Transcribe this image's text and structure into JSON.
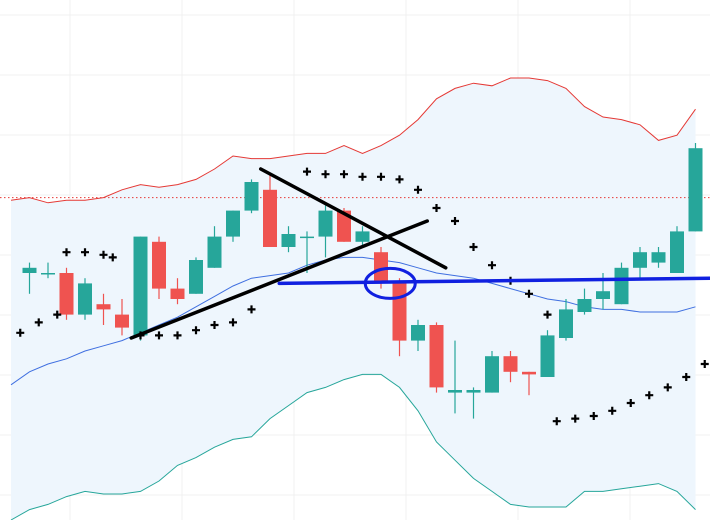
{
  "chart_data": {
    "type": "candlestick",
    "title": "",
    "xlabel": "",
    "ylabel": "",
    "ylim": [
      0,
      100
    ],
    "grid": true,
    "legend": "none",
    "colors": {
      "up": "#26a69a",
      "down": "#ef5350",
      "band_upper": "#e53935",
      "band_lower": "#26a69a",
      "band_fill": "#eef6fd",
      "middle_line": "#3f6fe0",
      "sar": "#000000",
      "trendline": "#000000",
      "support_line": "#1020e0",
      "reference_line": "#e53935",
      "grid": "#f0f0f0"
    },
    "reference_level": 62,
    "candles": [
      {
        "x": 1,
        "o": 47.5,
        "h": 49.5,
        "l": 43.5,
        "c": 48.5
      },
      {
        "x": 2,
        "o": 47.5,
        "h": 49.5,
        "l": 46.5,
        "c": 47.5
      },
      {
        "x": 3,
        "o": 47.5,
        "h": 48.5,
        "l": 38.5,
        "c": 39.5
      },
      {
        "x": 4,
        "o": 39.5,
        "h": 46.5,
        "l": 38.5,
        "c": 45.5
      },
      {
        "x": 5,
        "o": 41.5,
        "h": 43.5,
        "l": 37.5,
        "c": 40.5
      },
      {
        "x": 6,
        "o": 39.5,
        "h": 42.5,
        "l": 35.5,
        "c": 37.0
      },
      {
        "x": 7,
        "o": 35.5,
        "h": 54.5,
        "l": 34.5,
        "c": 54.5
      },
      {
        "x": 8,
        "o": 53.5,
        "h": 54.5,
        "l": 42.5,
        "c": 44.5
      },
      {
        "x": 9,
        "o": 44.5,
        "h": 46.5,
        "l": 41.5,
        "c": 42.5
      },
      {
        "x": 10,
        "o": 43.5,
        "h": 50.5,
        "l": 43.5,
        "c": 50.0
      },
      {
        "x": 11,
        "o": 48.5,
        "h": 56.5,
        "l": 48.5,
        "c": 54.5
      },
      {
        "x": 12,
        "o": 54.5,
        "h": 59.5,
        "l": 53.5,
        "c": 59.5
      },
      {
        "x": 13,
        "o": 59.5,
        "h": 65.5,
        "l": 59.0,
        "c": 65.0
      },
      {
        "x": 14,
        "o": 63.5,
        "h": 66.5,
        "l": 52.5,
        "c": 52.5
      },
      {
        "x": 15,
        "o": 52.5,
        "h": 56.5,
        "l": 51.5,
        "c": 55.0
      },
      {
        "x": 16,
        "o": 54.5,
        "h": 55.5,
        "l": 47.5,
        "c": 54.5
      },
      {
        "x": 17,
        "o": 54.5,
        "h": 60.5,
        "l": 50.5,
        "c": 59.5
      },
      {
        "x": 18,
        "o": 59.5,
        "h": 60.0,
        "l": 53.5,
        "c": 53.5
      },
      {
        "x": 19,
        "o": 53.5,
        "h": 56.5,
        "l": 52.5,
        "c": 55.5
      },
      {
        "x": 20,
        "o": 51.5,
        "h": 52.5,
        "l": 44.5,
        "c": 45.5
      },
      {
        "x": 21,
        "o": 45.5,
        "h": 46.5,
        "l": 31.5,
        "c": 34.5
      },
      {
        "x": 22,
        "o": 34.5,
        "h": 38.5,
        "l": 32.5,
        "c": 37.5
      },
      {
        "x": 23,
        "o": 37.5,
        "h": 38.0,
        "l": 24.5,
        "c": 25.5
      },
      {
        "x": 24,
        "o": 24.5,
        "h": 34.5,
        "l": 20.5,
        "c": 25.0
      },
      {
        "x": 25,
        "o": 24.5,
        "h": 25.5,
        "l": 19.5,
        "c": 25.0
      },
      {
        "x": 26,
        "o": 24.5,
        "h": 32.5,
        "l": 24.5,
        "c": 31.5
      },
      {
        "x": 27,
        "o": 31.5,
        "h": 32.5,
        "l": 26.5,
        "c": 28.5
      },
      {
        "x": 28,
        "o": 28.5,
        "h": 28.5,
        "l": 24.0,
        "c": 28.0
      },
      {
        "x": 29,
        "o": 27.5,
        "h": 36.5,
        "l": 27.5,
        "c": 35.5
      },
      {
        "x": 30,
        "o": 35.0,
        "h": 42.5,
        "l": 34.5,
        "c": 40.5
      },
      {
        "x": 31,
        "o": 40.0,
        "h": 44.5,
        "l": 39.5,
        "c": 42.5
      },
      {
        "x": 32,
        "o": 42.5,
        "h": 47.5,
        "l": 40.5,
        "c": 44.0
      },
      {
        "x": 33,
        "o": 41.5,
        "h": 49.5,
        "l": 41.5,
        "c": 48.5
      },
      {
        "x": 34,
        "o": 48.5,
        "h": 52.5,
        "l": 46.5,
        "c": 51.5
      },
      {
        "x": 35,
        "o": 49.5,
        "h": 52.5,
        "l": 48.5,
        "c": 51.5
      },
      {
        "x": 36,
        "o": 47.5,
        "h": 56.5,
        "l": 47.5,
        "c": 55.5
      },
      {
        "x": 37,
        "o": 55.5,
        "h": 72.5,
        "l": 55.5,
        "c": 71.5
      }
    ],
    "bollinger_upper": [
      [
        0,
        61.5
      ],
      [
        1,
        62.0
      ],
      [
        2,
        61.0
      ],
      [
        3,
        61.5
      ],
      [
        4,
        61.5
      ],
      [
        5,
        62.0
      ],
      [
        6,
        63.5
      ],
      [
        7,
        64.5
      ],
      [
        8,
        64.0
      ],
      [
        9,
        64.5
      ],
      [
        10,
        65.5
      ],
      [
        11,
        67.5
      ],
      [
        12,
        70.0
      ],
      [
        13,
        69.5
      ],
      [
        14,
        69.5
      ],
      [
        15,
        70.0
      ],
      [
        16,
        70.5
      ],
      [
        17,
        70.5
      ],
      [
        18,
        72.0
      ],
      [
        19,
        70.5
      ],
      [
        20,
        72.0
      ],
      [
        21,
        74.0
      ],
      [
        22,
        77.0
      ],
      [
        23,
        81.0
      ],
      [
        24,
        83.0
      ],
      [
        25,
        84.0
      ],
      [
        26,
        83.5
      ],
      [
        27,
        85.0
      ],
      [
        28,
        85.0
      ],
      [
        29,
        84.5
      ],
      [
        30,
        83.0
      ],
      [
        31,
        79.5
      ],
      [
        32,
        77.5
      ],
      [
        33,
        77.0
      ],
      [
        34,
        76.0
      ],
      [
        35,
        73.0
      ],
      [
        36,
        74.0
      ],
      [
        37,
        79.0
      ]
    ],
    "bollinger_middle": [
      [
        0,
        26.0
      ],
      [
        1,
        28.5
      ],
      [
        2,
        30.0
      ],
      [
        3,
        31.0
      ],
      [
        4,
        32.5
      ],
      [
        5,
        33.5
      ],
      [
        6,
        34.5
      ],
      [
        7,
        36.0
      ],
      [
        8,
        37.5
      ],
      [
        9,
        39.0
      ],
      [
        10,
        41.0
      ],
      [
        11,
        43.0
      ],
      [
        12,
        45.0
      ],
      [
        13,
        46.5
      ],
      [
        14,
        47.0
      ],
      [
        15,
        47.5
      ],
      [
        16,
        49.0
      ],
      [
        17,
        50.0
      ],
      [
        18,
        50.5
      ],
      [
        19,
        50.5
      ],
      [
        20,
        50.0
      ],
      [
        21,
        49.5
      ],
      [
        22,
        48.5
      ],
      [
        23,
        47.5
      ],
      [
        24,
        47.0
      ],
      [
        25,
        46.5
      ],
      [
        26,
        45.5
      ],
      [
        27,
        44.5
      ],
      [
        28,
        43.5
      ],
      [
        29,
        42.5
      ],
      [
        30,
        42.0
      ],
      [
        31,
        41.0
      ],
      [
        32,
        40.5
      ],
      [
        33,
        40.5
      ],
      [
        34,
        40.0
      ],
      [
        35,
        40.0
      ],
      [
        36,
        40.0
      ],
      [
        37,
        41.0
      ]
    ],
    "bollinger_lower": [
      [
        0,
        0.0
      ],
      [
        1,
        2.0
      ],
      [
        2,
        3.0
      ],
      [
        3,
        4.5
      ],
      [
        4,
        5.5
      ],
      [
        5,
        5.0
      ],
      [
        6,
        5.0
      ],
      [
        7,
        5.5
      ],
      [
        8,
        7.5
      ],
      [
        9,
        10.5
      ],
      [
        10,
        12.0
      ],
      [
        11,
        14.0
      ],
      [
        12,
        15.5
      ],
      [
        13,
        16.0
      ],
      [
        14,
        19.5
      ],
      [
        15,
        22.0
      ],
      [
        16,
        24.5
      ],
      [
        17,
        25.5
      ],
      [
        18,
        27.0
      ],
      [
        19,
        28.0
      ],
      [
        20,
        28.0
      ],
      [
        21,
        25.5
      ],
      [
        22,
        21.0
      ],
      [
        23,
        15.0
      ],
      [
        24,
        11.5
      ],
      [
        25,
        8.0
      ],
      [
        26,
        5.5
      ],
      [
        27,
        3.0
      ],
      [
        28,
        2.5
      ],
      [
        29,
        2.5
      ],
      [
        30,
        2.5
      ],
      [
        31,
        5.5
      ],
      [
        32,
        5.5
      ],
      [
        33,
        6.0
      ],
      [
        34,
        6.5
      ],
      [
        35,
        7.0
      ],
      [
        36,
        5.5
      ],
      [
        37,
        2.0
      ]
    ],
    "parabolic_sar": [
      [
        0.5,
        36.0
      ],
      [
        1.5,
        38.0
      ],
      [
        2.5,
        39.5
      ],
      [
        3.0,
        51.5
      ],
      [
        4.0,
        51.5
      ],
      [
        5.0,
        51.0
      ],
      [
        5.5,
        50.5
      ],
      [
        7.0,
        35.5
      ],
      [
        8.0,
        35.5
      ],
      [
        9.0,
        35.5
      ],
      [
        10.0,
        36.5
      ],
      [
        11.0,
        37.5
      ],
      [
        12.0,
        38.0
      ],
      [
        13.0,
        40.5
      ],
      [
        16.0,
        67.0
      ],
      [
        17.0,
        66.5
      ],
      [
        18.0,
        66.5
      ],
      [
        19.0,
        66.0
      ],
      [
        20.0,
        66.0
      ],
      [
        21.0,
        65.5
      ],
      [
        22.0,
        63.5
      ],
      [
        23.0,
        60.0
      ],
      [
        24.0,
        57.5
      ],
      [
        25.0,
        52.5
      ],
      [
        26.0,
        49.0
      ],
      [
        27.0,
        46.0
      ],
      [
        28.0,
        43.5
      ],
      [
        29.0,
        39.5
      ],
      [
        29.5,
        19.0
      ],
      [
        30.5,
        19.5
      ],
      [
        31.5,
        20.0
      ],
      [
        32.5,
        21.0
      ],
      [
        33.5,
        22.5
      ],
      [
        34.5,
        24.0
      ],
      [
        35.5,
        25.5
      ],
      [
        36.5,
        27.5
      ],
      [
        37.5,
        30.0
      ]
    ],
    "annotations": {
      "trendline_up": [
        [
          6.5,
          35.0
        ],
        [
          22.5,
          57.5
        ]
      ],
      "trendline_down": [
        [
          13.5,
          67.5
        ],
        [
          23.5,
          48.5
        ]
      ],
      "support_line": [
        [
          14.5,
          45.5
        ],
        [
          38.0,
          46.5
        ]
      ],
      "highlight_circle": {
        "x": 20.5,
        "y": 45.5
      }
    }
  }
}
